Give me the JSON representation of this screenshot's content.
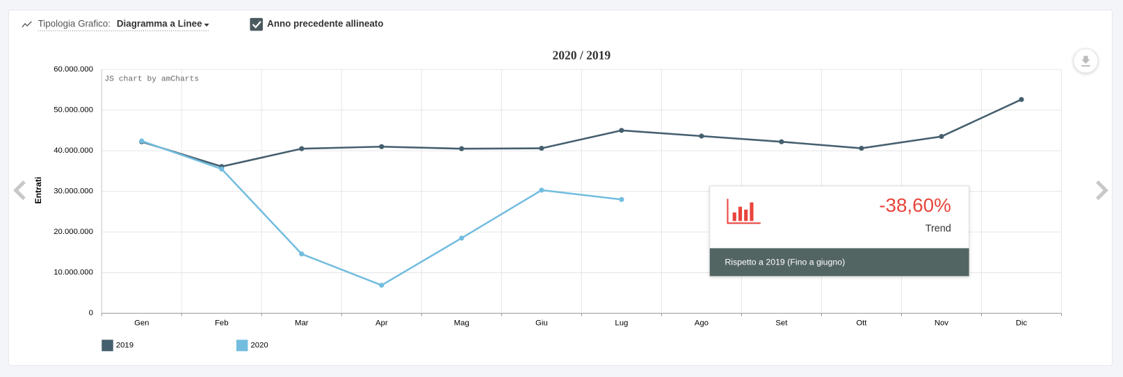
{
  "controls": {
    "chart_type_label": "Tipologia Grafico:",
    "chart_type_value": "Diagramma a Linee",
    "checkbox_label": "Anno precedente allineato"
  },
  "watermark": "JS chart by amCharts",
  "kpi": {
    "value": "-38,60%",
    "label": "Trend",
    "footer": "Rispetto a 2019 (Fino a giugno)"
  },
  "chart_data": {
    "type": "line",
    "title": "2020 / 2019",
    "y_label": "Entrati",
    "categories": [
      "Gen",
      "Feb",
      "Mar",
      "Apr",
      "Mag",
      "Giu",
      "Lug",
      "Ago",
      "Set",
      "Ott",
      "Nov",
      "Dic"
    ],
    "series": [
      {
        "name": "2019",
        "color": "#455f6e",
        "values": [
          42200000,
          36100000,
          40500000,
          41000000,
          40500000,
          40600000,
          45000000,
          43600000,
          42200000,
          40600000,
          43500000,
          52600000
        ]
      },
      {
        "name": "2020",
        "color": "#73bde0",
        "values": [
          42400000,
          35500000,
          14600000,
          6900000,
          18500000,
          30300000,
          28000000,
          null,
          null,
          null,
          null,
          null
        ]
      }
    ],
    "ylim": [
      0,
      60000000
    ],
    "yticks": [
      0,
      {
        "value": 10000000,
        "label": "10.000.000"
      },
      {
        "value": 20000000,
        "label": "20.000.000"
      },
      {
        "value": 30000000,
        "label": "30.000.000"
      },
      {
        "value": 40000000,
        "label": "40.000.000"
      },
      {
        "value": 50000000,
        "label": "50.000.000"
      },
      {
        "value": 60000000,
        "label": "60.000.000"
      }
    ],
    "grid": true,
    "legend": "bottom"
  }
}
